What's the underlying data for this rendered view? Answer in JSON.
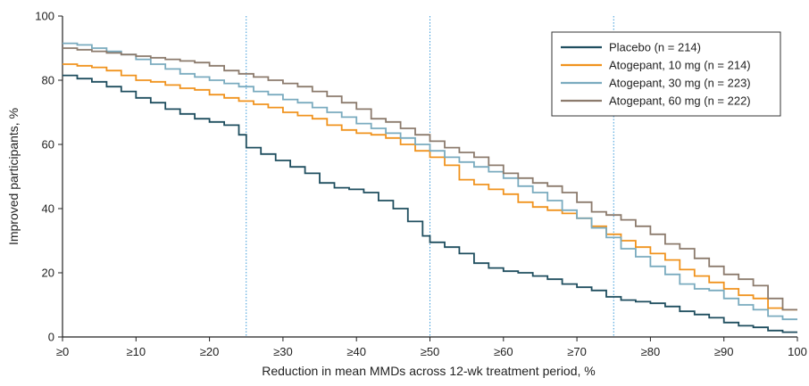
{
  "chart_data": {
    "type": "line",
    "xlabel": "Reduction in mean MMDs across 12-wk treatment period, %",
    "ylabel": "Improved participants, %",
    "xlim": [
      0,
      100
    ],
    "ylim": [
      0,
      100
    ],
    "x_ticks": [
      0,
      10,
      20,
      30,
      40,
      50,
      60,
      70,
      80,
      90,
      100
    ],
    "x_tick_labels": [
      "≥0",
      "≥10",
      "≥20",
      "≥30",
      "≥40",
      "≥50",
      "≥60",
      "≥70",
      "≥80",
      "≥90",
      "100"
    ],
    "y_ticks": [
      0,
      20,
      40,
      60,
      80,
      100
    ],
    "y_tick_labels": [
      "0",
      "20",
      "40",
      "60",
      "80",
      "100"
    ],
    "reference_lines_x": [
      25,
      50,
      75
    ],
    "legend_position": "top-right",
    "grid": false,
    "series": [
      {
        "name": "Placebo (n = 214)",
        "color": "#1f4e5f",
        "points": [
          [
            0,
            81.5
          ],
          [
            2,
            80.5
          ],
          [
            4,
            79.5
          ],
          [
            6,
            78
          ],
          [
            8,
            76.5
          ],
          [
            10,
            74.5
          ],
          [
            12,
            73
          ],
          [
            14,
            71
          ],
          [
            16,
            69.5
          ],
          [
            18,
            68
          ],
          [
            20,
            67
          ],
          [
            22,
            66
          ],
          [
            24,
            63
          ],
          [
            25,
            59
          ],
          [
            27,
            57
          ],
          [
            29,
            55
          ],
          [
            31,
            53
          ],
          [
            33,
            51
          ],
          [
            35,
            48
          ],
          [
            37,
            46.5
          ],
          [
            39,
            46
          ],
          [
            41,
            45
          ],
          [
            43,
            42.5
          ],
          [
            45,
            40
          ],
          [
            47,
            36
          ],
          [
            49,
            31.5
          ],
          [
            50,
            29.5
          ],
          [
            52,
            28
          ],
          [
            54,
            26
          ],
          [
            56,
            23
          ],
          [
            58,
            21.5
          ],
          [
            60,
            20.5
          ],
          [
            62,
            20
          ],
          [
            64,
            19
          ],
          [
            66,
            18
          ],
          [
            68,
            16.5
          ],
          [
            70,
            15.5
          ],
          [
            72,
            14.5
          ],
          [
            74,
            12.5
          ],
          [
            76,
            11.5
          ],
          [
            78,
            11
          ],
          [
            80,
            10.5
          ],
          [
            82,
            9.5
          ],
          [
            84,
            8
          ],
          [
            86,
            7
          ],
          [
            88,
            6
          ],
          [
            90,
            4.5
          ],
          [
            92,
            3.5
          ],
          [
            94,
            3
          ],
          [
            96,
            2
          ],
          [
            98,
            1.5
          ],
          [
            100,
            1.5
          ]
        ]
      },
      {
        "name": "Atogepant, 10 mg (n = 214)",
        "color": "#f0931e",
        "points": [
          [
            0,
            85
          ],
          [
            2,
            84.5
          ],
          [
            4,
            84
          ],
          [
            6,
            83
          ],
          [
            8,
            81.5
          ],
          [
            10,
            80
          ],
          [
            12,
            79.5
          ],
          [
            14,
            78.5
          ],
          [
            16,
            77.5
          ],
          [
            18,
            77
          ],
          [
            20,
            75.5
          ],
          [
            22,
            74.5
          ],
          [
            24,
            73.5
          ],
          [
            26,
            72.5
          ],
          [
            28,
            71.5
          ],
          [
            30,
            70
          ],
          [
            32,
            69
          ],
          [
            34,
            68
          ],
          [
            36,
            66
          ],
          [
            38,
            64.5
          ],
          [
            40,
            63.5
          ],
          [
            42,
            63
          ],
          [
            44,
            62
          ],
          [
            46,
            60
          ],
          [
            48,
            58
          ],
          [
            50,
            56
          ],
          [
            52,
            53.5
          ],
          [
            54,
            49
          ],
          [
            56,
            47.5
          ],
          [
            58,
            46
          ],
          [
            60,
            44.5
          ],
          [
            62,
            42
          ],
          [
            64,
            40.5
          ],
          [
            66,
            39.5
          ],
          [
            68,
            38.5
          ],
          [
            70,
            37
          ],
          [
            72,
            34.5
          ],
          [
            74,
            32
          ],
          [
            76,
            30
          ],
          [
            78,
            28
          ],
          [
            80,
            26
          ],
          [
            82,
            24
          ],
          [
            84,
            21
          ],
          [
            86,
            19
          ],
          [
            88,
            17
          ],
          [
            90,
            15
          ],
          [
            92,
            13
          ],
          [
            94,
            12
          ],
          [
            96,
            9
          ],
          [
            98,
            8.5
          ],
          [
            100,
            8.5
          ]
        ]
      },
      {
        "name": "Atogepant, 30 mg (n = 223)",
        "color": "#7aabbf",
        "points": [
          [
            0,
            91.5
          ],
          [
            2,
            91
          ],
          [
            4,
            90
          ],
          [
            6,
            89
          ],
          [
            8,
            88
          ],
          [
            10,
            86.5
          ],
          [
            12,
            85
          ],
          [
            14,
            83.5
          ],
          [
            16,
            82
          ],
          [
            18,
            81
          ],
          [
            20,
            80
          ],
          [
            22,
            79
          ],
          [
            24,
            78
          ],
          [
            26,
            76.5
          ],
          [
            28,
            75.5
          ],
          [
            30,
            74
          ],
          [
            32,
            73
          ],
          [
            34,
            71.5
          ],
          [
            36,
            70
          ],
          [
            38,
            68.5
          ],
          [
            40,
            66.5
          ],
          [
            42,
            65
          ],
          [
            44,
            63.5
          ],
          [
            46,
            62
          ],
          [
            48,
            60
          ],
          [
            50,
            58
          ],
          [
            52,
            56
          ],
          [
            54,
            54.5
          ],
          [
            56,
            53
          ],
          [
            58,
            51.5
          ],
          [
            60,
            49.5
          ],
          [
            62,
            47
          ],
          [
            64,
            45
          ],
          [
            66,
            42.5
          ],
          [
            68,
            39.5
          ],
          [
            70,
            37
          ],
          [
            72,
            34
          ],
          [
            74,
            31
          ],
          [
            76,
            27.5
          ],
          [
            78,
            25
          ],
          [
            80,
            22
          ],
          [
            82,
            19.5
          ],
          [
            84,
            16.5
          ],
          [
            86,
            15
          ],
          [
            88,
            14.5
          ],
          [
            90,
            12
          ],
          [
            92,
            10
          ],
          [
            94,
            8.5
          ],
          [
            96,
            6.5
          ],
          [
            98,
            5.5
          ],
          [
            100,
            5.5
          ]
        ]
      },
      {
        "name": "Atogepant, 60 mg (n = 222)",
        "color": "#8c7b6d",
        "points": [
          [
            0,
            90
          ],
          [
            2,
            89.5
          ],
          [
            4,
            89
          ],
          [
            6,
            88.5
          ],
          [
            8,
            88
          ],
          [
            10,
            87.5
          ],
          [
            12,
            87
          ],
          [
            14,
            86.5
          ],
          [
            16,
            86
          ],
          [
            18,
            85.5
          ],
          [
            20,
            84.5
          ],
          [
            22,
            83
          ],
          [
            24,
            82
          ],
          [
            26,
            81
          ],
          [
            28,
            80
          ],
          [
            30,
            79
          ],
          [
            32,
            78
          ],
          [
            34,
            76.5
          ],
          [
            36,
            75
          ],
          [
            38,
            73
          ],
          [
            40,
            71
          ],
          [
            42,
            68
          ],
          [
            44,
            67
          ],
          [
            46,
            65
          ],
          [
            48,
            63
          ],
          [
            50,
            61
          ],
          [
            52,
            59
          ],
          [
            54,
            57.5
          ],
          [
            56,
            56
          ],
          [
            58,
            53.5
          ],
          [
            60,
            51
          ],
          [
            62,
            49.5
          ],
          [
            64,
            48
          ],
          [
            66,
            47
          ],
          [
            68,
            45
          ],
          [
            70,
            42
          ],
          [
            72,
            39
          ],
          [
            74,
            38
          ],
          [
            76,
            36.5
          ],
          [
            78,
            34.5
          ],
          [
            80,
            32
          ],
          [
            82,
            29
          ],
          [
            84,
            27.5
          ],
          [
            86,
            24.5
          ],
          [
            88,
            22
          ],
          [
            90,
            19.5
          ],
          [
            92,
            18
          ],
          [
            94,
            16
          ],
          [
            96,
            12
          ],
          [
            98,
            8.5
          ],
          [
            100,
            8.5
          ]
        ]
      }
    ]
  }
}
